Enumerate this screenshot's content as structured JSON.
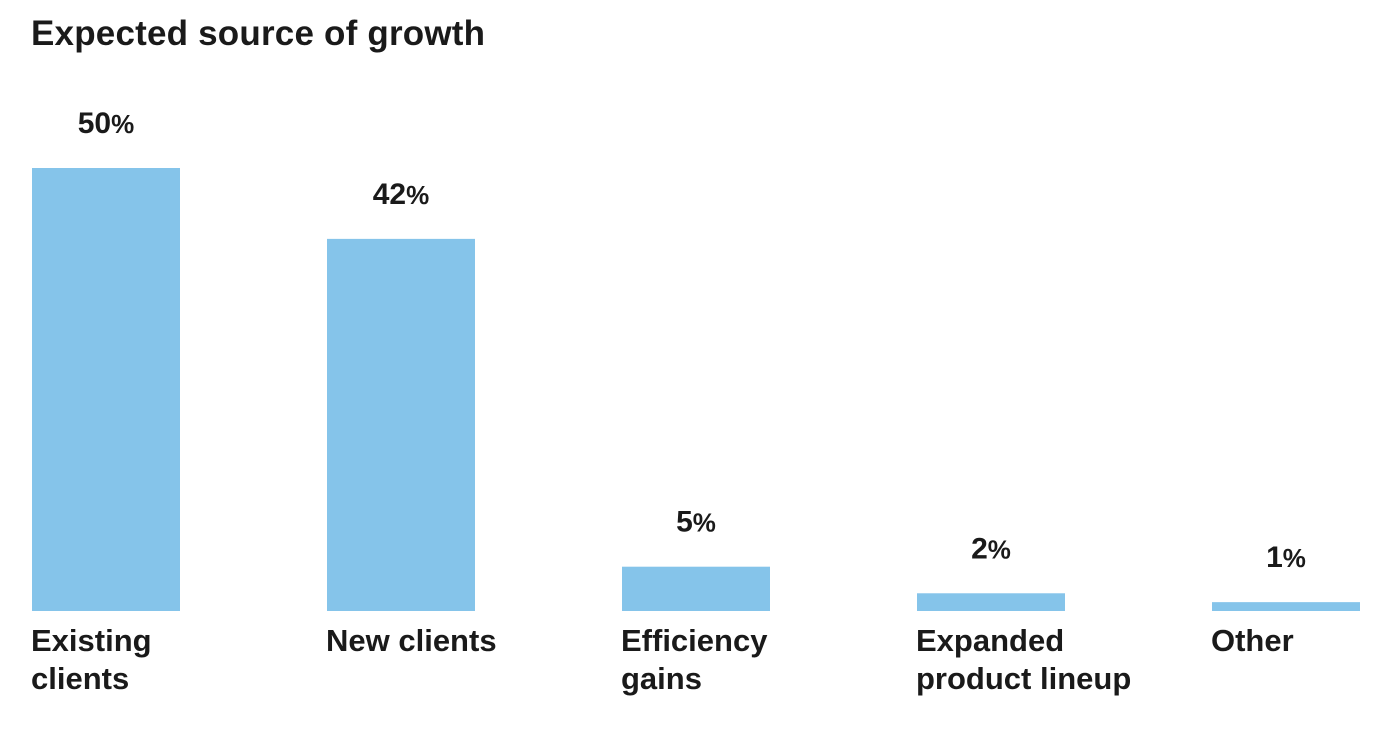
{
  "chart_data": {
    "type": "bar",
    "title": "Expected source of growth",
    "categories": [
      "Existing clients",
      "New clients",
      "Efficiency gains",
      "Expanded product lineup",
      "Other"
    ],
    "values": [
      50,
      42,
      5,
      2,
      1
    ],
    "data_labels": [
      "50%",
      "42%",
      "5%",
      "2%",
      "1%"
    ],
    "unit": "%",
    "xlabel": "",
    "ylabel": "",
    "ylim": [
      0,
      50
    ],
    "grid": false,
    "legend": "none",
    "bar_color": "#85C4EA"
  }
}
